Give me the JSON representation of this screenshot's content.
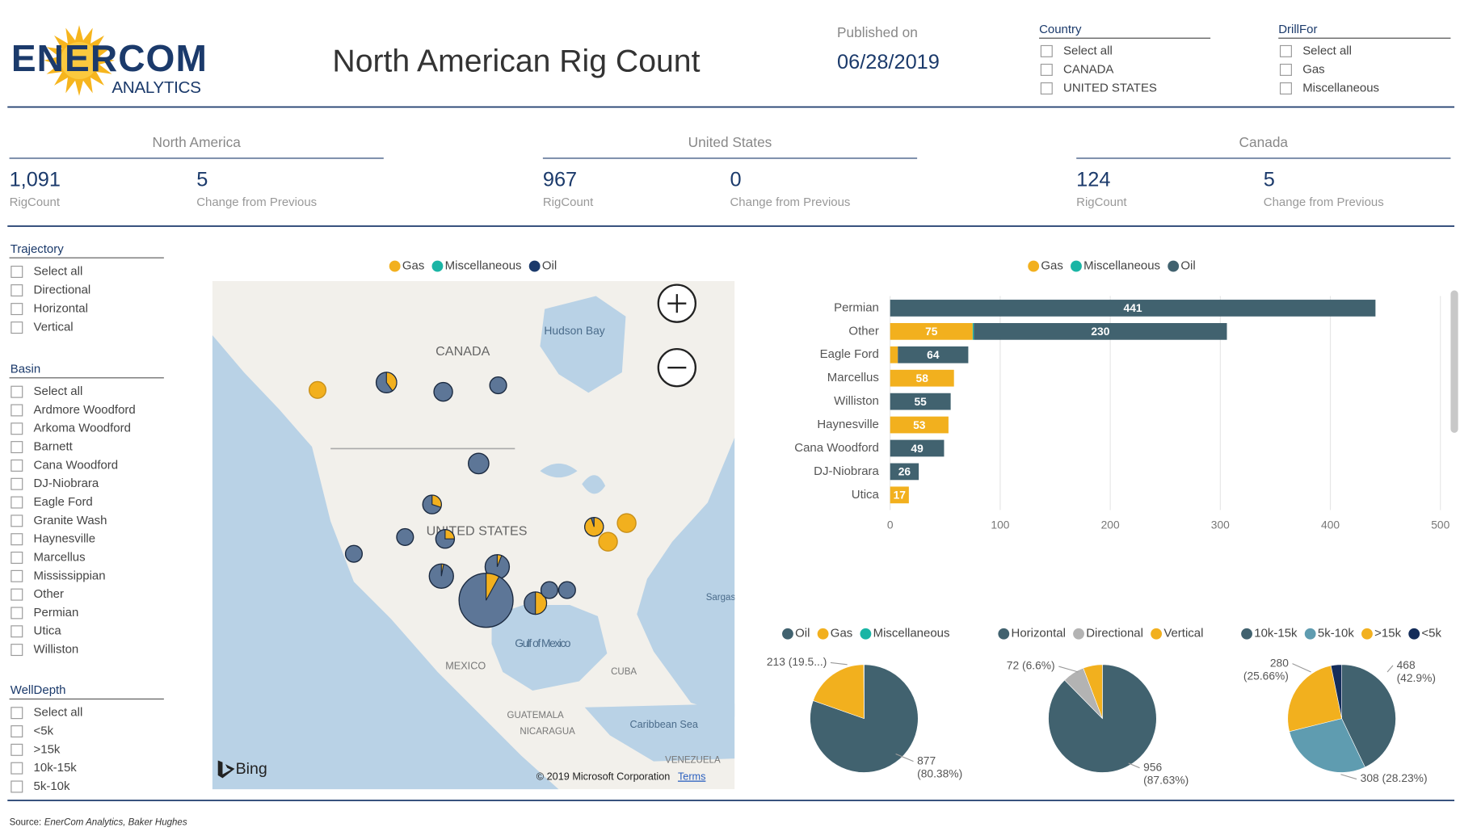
{
  "header": {
    "logo": "ENERCOM",
    "logo_sub": "ANALYTICS",
    "title": "North American Rig Count",
    "published_label": "Published on",
    "published_date": "06/28/2019"
  },
  "top_filters": [
    {
      "title": "Country",
      "items": [
        "Select all",
        "CANADA",
        "UNITED STATES"
      ]
    },
    {
      "title": "DrillFor",
      "items": [
        "Select all",
        "Gas",
        "Miscellaneous"
      ]
    }
  ],
  "kpis": [
    {
      "region": "North America",
      "rig_count": "1,091",
      "rig_count_label": "RigCount",
      "change": "5",
      "change_label": "Change from Previous"
    },
    {
      "region": "United States",
      "rig_count": "967",
      "rig_count_label": "RigCount",
      "change": "0",
      "change_label": "Change from Previous"
    },
    {
      "region": "Canada",
      "rig_count": "124",
      "rig_count_label": "RigCount",
      "change": "5",
      "change_label": "Change from Previous"
    }
  ],
  "side_filters": [
    {
      "title": "Trajectory",
      "items": [
        "Select all",
        "Directional",
        "Horizontal",
        "Vertical"
      ]
    },
    {
      "title": "Basin",
      "items": [
        "Select all",
        "Ardmore Woodford",
        "Arkoma Woodford",
        "Barnett",
        "Cana Woodford",
        "DJ-Niobrara",
        "Eagle Ford",
        "Granite Wash",
        "Haynesville",
        "Marcellus",
        "Mississippian",
        "Other",
        "Permian",
        "Utica",
        "Williston"
      ]
    },
    {
      "title": "WellDepth",
      "items": [
        "Select all",
        "<5k",
        ">15k",
        "10k-15k",
        "5k-10k"
      ]
    }
  ],
  "map": {
    "legend": [
      {
        "name": "Gas",
        "color": "#f2b01e"
      },
      {
        "name": "Miscellaneous",
        "color": "#1ab5a5"
      },
      {
        "name": "Oil",
        "color": "#1b3a6b"
      }
    ],
    "labels": [
      "CANADA",
      "Hudson Bay",
      "UNITED STATES",
      "Gulf of Mexico",
      "MEXICO",
      "CUBA",
      "GUATEMALA",
      "NICARAGUA",
      "Caribbean Sea",
      "VENEZUELA",
      "Sargas"
    ],
    "provider": "Bing",
    "copyright": "© 2019 Microsoft Corporation",
    "terms": "Terms"
  },
  "chart_data": [
    {
      "type": "bar",
      "orientation": "horizontal",
      "stacked": true,
      "categories": [
        "Permian",
        "Other",
        "Eagle Ford",
        "Marcellus",
        "Williston",
        "Haynesville",
        "Cana Woodford",
        "DJ-Niobrara",
        "Utica"
      ],
      "series": [
        {
          "name": "Gas",
          "color": "#f2b01e",
          "values": [
            null,
            75,
            7,
            58,
            null,
            53,
            null,
            null,
            17
          ]
        },
        {
          "name": "Miscellaneous",
          "color": "#1ab5a5",
          "values": [
            null,
            1,
            null,
            null,
            null,
            null,
            null,
            null,
            null
          ]
        },
        {
          "name": "Oil",
          "color": "#41626f",
          "values": [
            441,
            230,
            64,
            null,
            55,
            null,
            49,
            26,
            null
          ]
        }
      ],
      "xlim": [
        0,
        500
      ],
      "xticks": [
        0,
        100,
        200,
        300,
        400,
        500
      ],
      "grid": true
    },
    {
      "type": "pie",
      "series": [
        {
          "name": "Oil",
          "color": "#41626f",
          "value": 877,
          "value_label": "877\n(80.38%)"
        },
        {
          "name": "Gas",
          "color": "#f2b01e",
          "value": 213,
          "value_label": "213 (19.5...)"
        },
        {
          "name": "Miscellaneous",
          "color": "#1ab5a5",
          "value": 1
        }
      ]
    },
    {
      "type": "pie",
      "series": [
        {
          "name": "Horizontal",
          "color": "#41626f",
          "value": 956,
          "value_label": "956\n(87.63%)"
        },
        {
          "name": "Directional",
          "color": "#b3b3b3",
          "value": 72,
          "value_label": "72 (6.6%)"
        },
        {
          "name": "Vertical",
          "color": "#f2b01e",
          "value": 63
        }
      ]
    },
    {
      "type": "pie",
      "series": [
        {
          "name": "10k-15k",
          "color": "#41626f",
          "value": 468,
          "value_label": "468\n(42.9%)"
        },
        {
          "name": "5k-10k",
          "color": "#5f9cb0",
          "value": 308,
          "value_label": "308 (28.23%)"
        },
        {
          "name": ">15k",
          "color": "#f2b01e",
          "value": 280,
          "value_label": "280\n(25.66%)"
        },
        {
          "name": "<5k",
          "color": "#142d5a",
          "value": 35
        }
      ]
    }
  ],
  "source": {
    "label": "Source:",
    "text": "EnerCom Analytics, Baker Hughes"
  }
}
